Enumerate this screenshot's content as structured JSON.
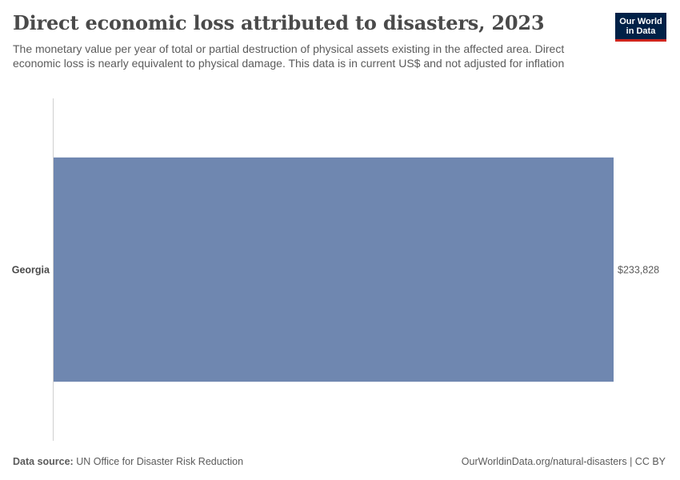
{
  "header": {
    "title": "Direct economic loss attributed to disasters, 2023",
    "subtitle": "The monetary value per year of total or partial destruction of physical assets existing in the affected area. Direct economic loss is nearly equivalent to physical damage. This data is in current US$ and not adjusted for inflation"
  },
  "logo": {
    "line1": "Our World",
    "line2": "in Data"
  },
  "colors": {
    "bar": "#6f87b0",
    "axis": "#d0d0d0",
    "logo_bg": "#002147",
    "logo_accent": "#ce261e"
  },
  "chart_data": {
    "type": "bar",
    "orientation": "horizontal",
    "categories": [
      "Georgia"
    ],
    "values": [
      233828
    ],
    "value_labels": [
      "$233,828"
    ],
    "xlim": [
      0,
      233828
    ],
    "grid": false,
    "legend": "none"
  },
  "footer": {
    "source_label": "Data source:",
    "source_text": "UN Office for Disaster Risk Reduction",
    "link_text": "OurWorldinData.org/natural-disasters",
    "license_text": " | CC BY"
  }
}
